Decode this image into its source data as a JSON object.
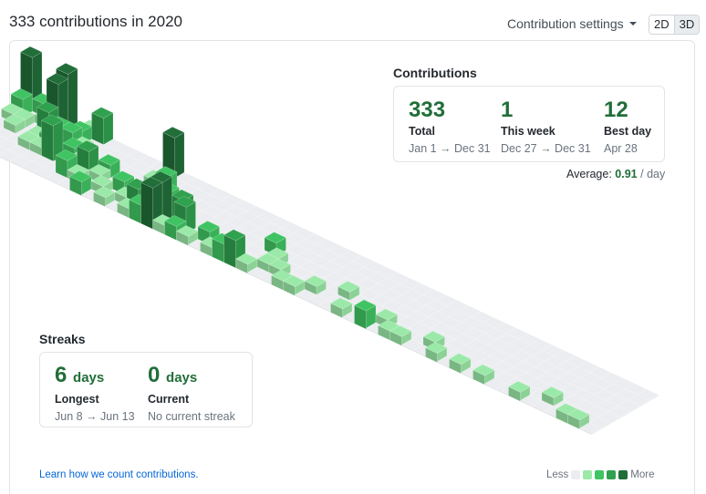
{
  "header": {
    "title": "333 contributions in 2020",
    "settings_label": "Contribution settings",
    "toggle_2d": "2D",
    "toggle_3d": "3D"
  },
  "contributions": {
    "title": "Contributions",
    "stats": [
      {
        "value": "333",
        "label": "Total",
        "sub": "Jan 1 → Dec 31"
      },
      {
        "value": "1",
        "label": "This week",
        "sub": "Dec 27 → Dec 31"
      },
      {
        "value": "12",
        "label": "Best day",
        "sub": "Apr 28"
      }
    ],
    "average_label": "Average:",
    "average_value": "0.91",
    "average_unit": "/ day"
  },
  "streaks": {
    "title": "Streaks",
    "stats": [
      {
        "value": "6",
        "unit": "days",
        "label": "Longest",
        "sub": "Jun 8 → Jun 13"
      },
      {
        "value": "0",
        "unit": "days",
        "label": "Current",
        "sub": "No current streak"
      }
    ]
  },
  "footer": {
    "learn_link": "Learn how we count contributions.",
    "legend_less": "Less",
    "legend_more": "More"
  },
  "colors": {
    "level0": "#ebedf0",
    "level1": "#9be9a8",
    "level2": "#40c463",
    "level3": "#30a14e",
    "level4": "#216e39",
    "accent": "#216e39",
    "link": "#0366d6"
  },
  "calendar": {
    "weeks": 53,
    "days_per_week": 7,
    "bars": [
      [
        0,
        0,
        12
      ],
      [
        0,
        1,
        4
      ],
      [
        0,
        2,
        2
      ],
      [
        1,
        0,
        3
      ],
      [
        1,
        2,
        2
      ],
      [
        1,
        3,
        2
      ],
      [
        2,
        1,
        2
      ],
      [
        2,
        0,
        3
      ],
      [
        3,
        0,
        12
      ],
      [
        3,
        1,
        11
      ],
      [
        3,
        2,
        6
      ],
      [
        3,
        3,
        2
      ],
      [
        3,
        4,
        2
      ],
      [
        4,
        2,
        4
      ],
      [
        4,
        3,
        3
      ],
      [
        4,
        4,
        2
      ],
      [
        5,
        0,
        2
      ],
      [
        5,
        1,
        3
      ],
      [
        5,
        2,
        4
      ],
      [
        5,
        4,
        8
      ],
      [
        6,
        0,
        6
      ],
      [
        6,
        2,
        2
      ],
      [
        6,
        3,
        3
      ],
      [
        7,
        3,
        2
      ],
      [
        7,
        5,
        4
      ],
      [
        8,
        4,
        6
      ],
      [
        8,
        5,
        2
      ],
      [
        9,
        3,
        3
      ],
      [
        9,
        4,
        2
      ],
      [
        9,
        6,
        3
      ],
      [
        10,
        5,
        2
      ],
      [
        11,
        4,
        3
      ],
      [
        11,
        6,
        2
      ],
      [
        12,
        0,
        9
      ],
      [
        12,
        2,
        2
      ],
      [
        12,
        5,
        2
      ],
      [
        13,
        2,
        4
      ],
      [
        13,
        3,
        2
      ],
      [
        13,
        5,
        5
      ],
      [
        13,
        6,
        2
      ],
      [
        14,
        3,
        3
      ],
      [
        14,
        5,
        2
      ],
      [
        14,
        6,
        4
      ],
      [
        15,
        3,
        2
      ],
      [
        15,
        5,
        9
      ],
      [
        15,
        6,
        9
      ],
      [
        16,
        4,
        5
      ],
      [
        16,
        6,
        2
      ],
      [
        17,
        5,
        6
      ],
      [
        17,
        6,
        3
      ],
      [
        18,
        6,
        2
      ],
      [
        19,
        5,
        3
      ],
      [
        20,
        6,
        2
      ],
      [
        21,
        6,
        4
      ],
      [
        22,
        6,
        6
      ],
      [
        23,
        3,
        3
      ],
      [
        23,
        6,
        2
      ],
      [
        24,
        4,
        2
      ],
      [
        24,
        5,
        2
      ],
      [
        25,
        5,
        2
      ],
      [
        26,
        6,
        2
      ],
      [
        27,
        6,
        2
      ],
      [
        28,
        5,
        2
      ],
      [
        30,
        4,
        2
      ],
      [
        31,
        6,
        2
      ],
      [
        33,
        6,
        4
      ],
      [
        34,
        5,
        2
      ],
      [
        35,
        6,
        2
      ],
      [
        36,
        6,
        2
      ],
      [
        38,
        5,
        2
      ],
      [
        39,
        6,
        2
      ],
      [
        41,
        6,
        2
      ],
      [
        43,
        6,
        2
      ],
      [
        46,
        6,
        2
      ],
      [
        48,
        5,
        2
      ],
      [
        50,
        6,
        2
      ],
      [
        51,
        6,
        2
      ]
    ]
  }
}
